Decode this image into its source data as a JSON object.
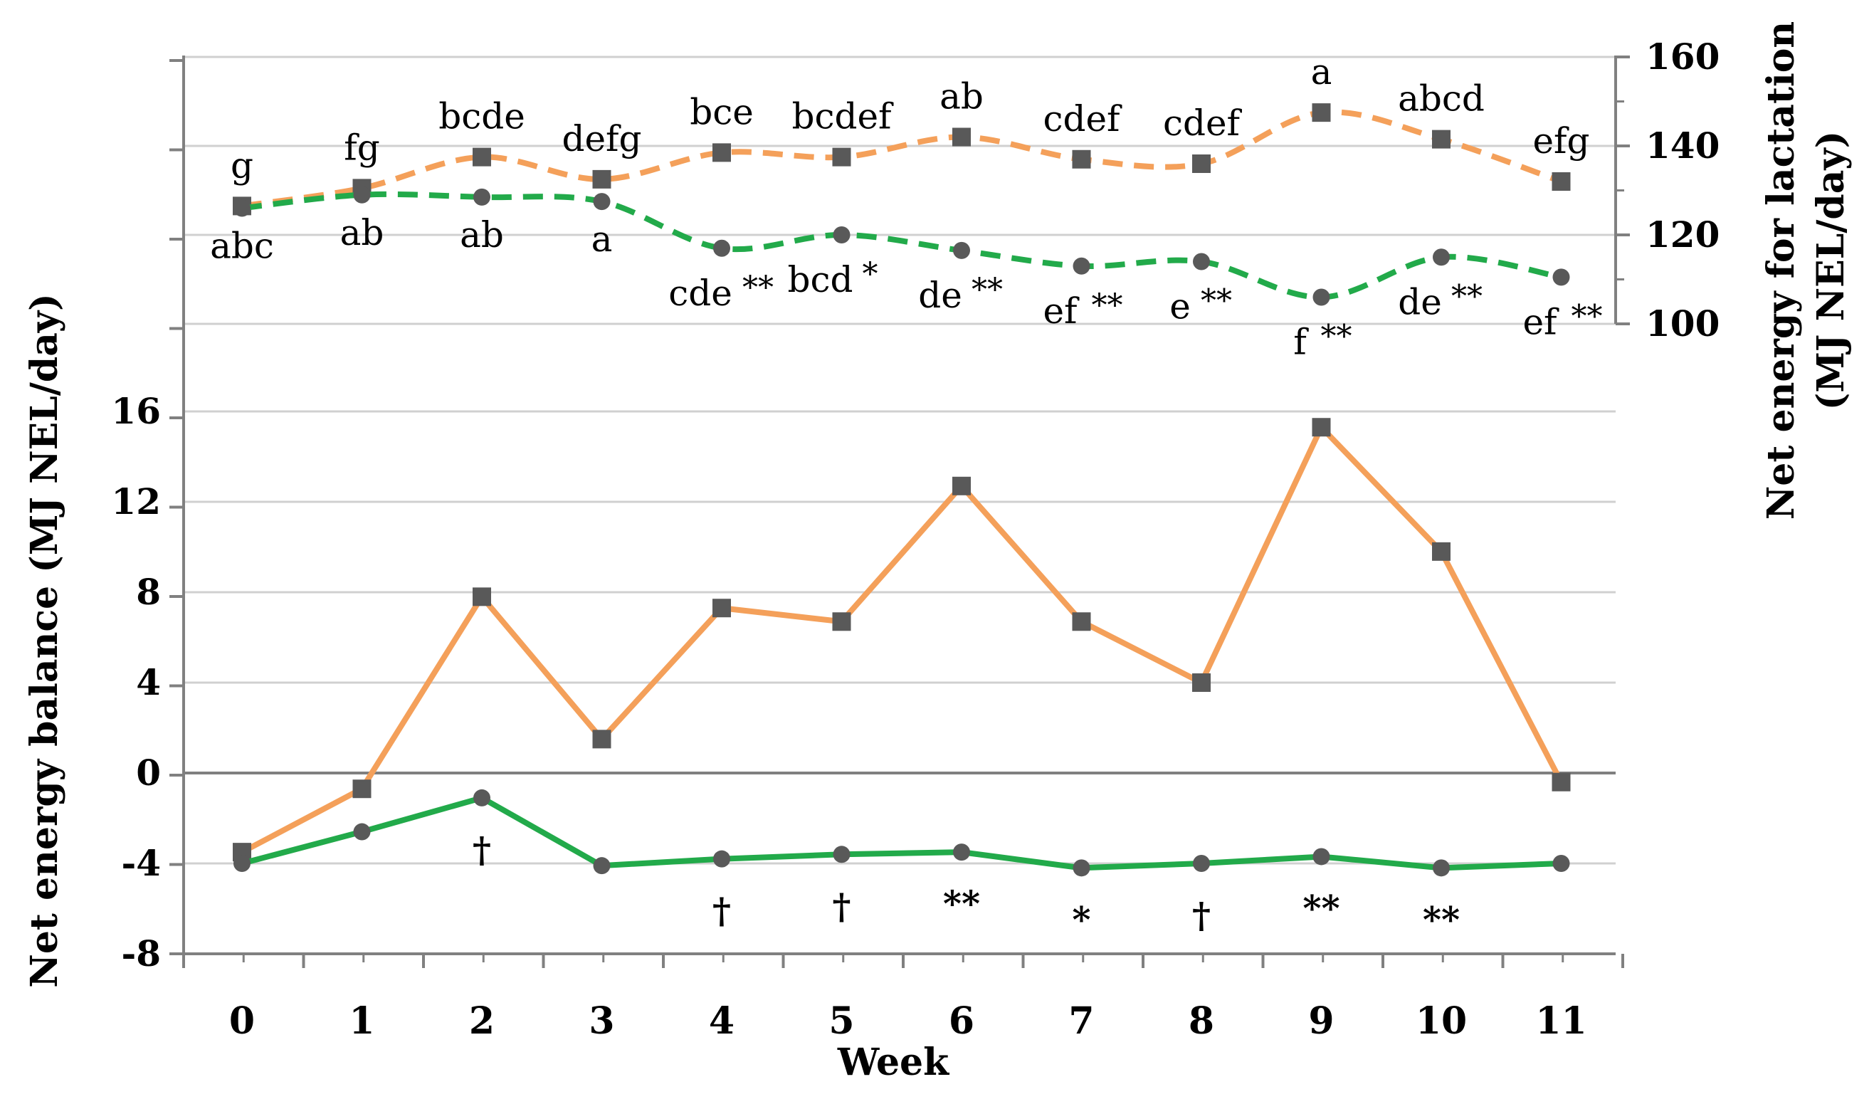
{
  "chart_data": {
    "type": "line",
    "title": "",
    "xlabel": "Week",
    "ylabel_left": "Net energy balance  (MJ NEL/day)",
    "ylabel_right_line1": "Net energy for lactation",
    "ylabel_right_line2": "(MJ NEL/day)",
    "x": [
      "0",
      "1",
      "2",
      "3",
      "4",
      "5",
      "6",
      "7",
      "8",
      "9",
      "10",
      "11"
    ],
    "y_left_ticks": [
      "16",
      "12",
      "8",
      "4",
      "0",
      "-4",
      "-8"
    ],
    "y_left_range": [
      -8,
      16
    ],
    "y_right_ticks": [
      "160",
      "140",
      "120",
      "100"
    ],
    "y_right_range": [
      100,
      160
    ],
    "grid": true,
    "series": [
      {
        "name": "Net energy for lactation (orange)",
        "axis": "right",
        "style": "dashed",
        "marker": "square",
        "color": "#F4A05A",
        "values": [
          126.5,
          130.5,
          137.5,
          132.5,
          138.5,
          137.5,
          142,
          137,
          136,
          147.5,
          141.5,
          132
        ]
      },
      {
        "name": "Net energy for lactation (green)",
        "axis": "right",
        "style": "dashed",
        "marker": "circle",
        "color": "#22AA4A",
        "values": [
          126,
          129,
          128.5,
          127.5,
          117,
          120,
          116.5,
          113,
          114,
          106,
          115,
          110.5
        ]
      },
      {
        "name": "Net energy balance (orange)",
        "axis": "left",
        "style": "solid",
        "marker": "square",
        "color": "#F4A05A",
        "values": [
          -3.5,
          -0.7,
          7.8,
          1.5,
          7.3,
          6.7,
          12.7,
          6.7,
          4.0,
          15.3,
          9.8,
          -0.4
        ]
      },
      {
        "name": "Net energy balance (green)",
        "axis": "left",
        "style": "solid",
        "marker": "circle",
        "color": "#22AA4A",
        "values": [
          -4.0,
          -2.6,
          -1.1,
          -4.1,
          -3.8,
          -3.6,
          -3.5,
          -4.2,
          -4.0,
          -3.7,
          -4.2,
          -4.0
        ]
      }
    ],
    "annotations": {
      "orange_top_letters": [
        "g",
        "fg",
        "bcde",
        "defg",
        "bce",
        "bcdef",
        "ab",
        "cdef",
        "cdef",
        "a",
        "abcd",
        "efg"
      ],
      "green_top_letters": [
        "abc",
        "ab",
        "ab",
        "a",
        "cde",
        "bcd",
        "de",
        "ef",
        "e",
        "f",
        "de",
        "ef"
      ],
      "green_top_stars": [
        "",
        "",
        "",
        "",
        "**",
        "*",
        "**",
        "**",
        "**",
        "**",
        "**",
        "**"
      ],
      "bottom_marks": [
        "",
        "",
        "†",
        "",
        "†",
        "†",
        "**",
        "*",
        "†",
        "**",
        "**",
        ""
      ]
    }
  }
}
